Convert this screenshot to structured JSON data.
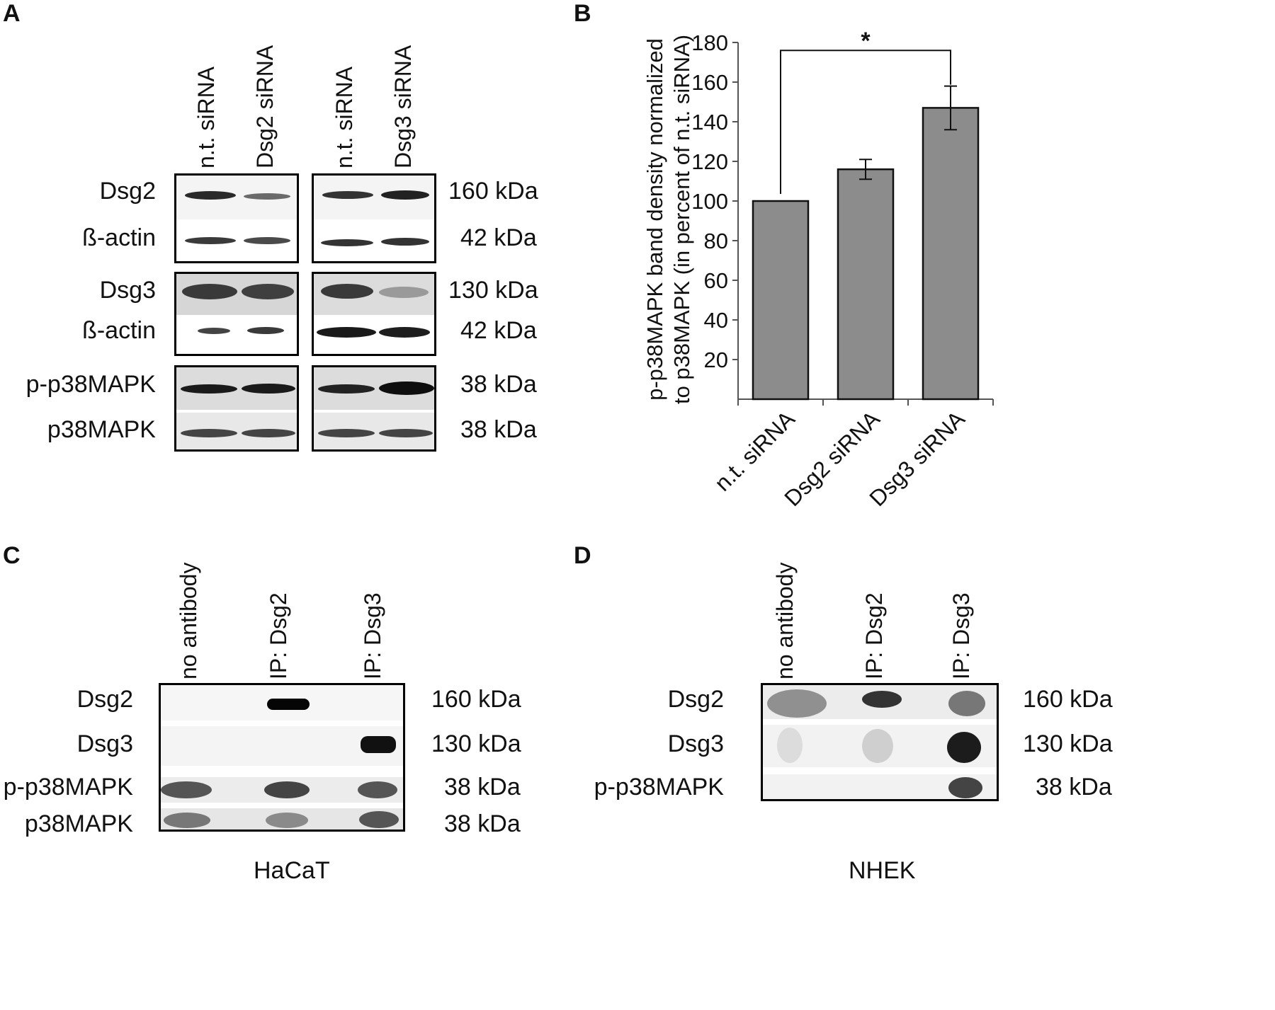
{
  "panels": {
    "a": {
      "letter": "A",
      "lane_labels": [
        "n.t. siRNA",
        "Dsg2 siRNA",
        "n.t. siRNA",
        "Dsg3 siRNA"
      ],
      "rows": [
        {
          "label": "Dsg2",
          "kda": "160 kDa"
        },
        {
          "label": "ß-actin",
          "kda": "42 kDa"
        },
        {
          "label": "Dsg3",
          "kda": "130 kDa"
        },
        {
          "label": "ß-actin",
          "kda": "42 kDa"
        },
        {
          "label": "p-p38MAPK",
          "kda": "38 kDa"
        },
        {
          "label": "p38MAPK",
          "kda": "38 kDa"
        }
      ]
    },
    "b": {
      "letter": "B"
    },
    "c": {
      "letter": "C",
      "lane_labels": [
        "no antibody",
        "IP: Dsg2",
        "IP: Dsg3"
      ],
      "rows": [
        {
          "label": "Dsg2",
          "kda": "160 kDa"
        },
        {
          "label": "Dsg3",
          "kda": "130 kDa"
        },
        {
          "label": "p-p38MAPK",
          "kda": "38 kDa"
        },
        {
          "label": "p38MAPK",
          "kda": "38 kDa"
        }
      ],
      "cell_line": "HaCaT"
    },
    "d": {
      "letter": "D",
      "lane_labels": [
        "no antibody",
        "IP: Dsg2",
        "IP: Dsg3"
      ],
      "rows": [
        {
          "label": "Dsg2",
          "kda": "160 kDa"
        },
        {
          "label": "Dsg3",
          "kda": "130 kDa"
        },
        {
          "label": "p-p38MAPK",
          "kda": "38 kDa"
        }
      ],
      "cell_line": "NHEK"
    }
  },
  "chart_data": {
    "type": "bar",
    "categories": [
      "n.t. siRNA",
      "Dsg2 siRNA",
      "Dsg3 siRNA"
    ],
    "values": [
      100,
      116,
      147
    ],
    "errors": [
      0,
      5,
      11
    ],
    "ylabel": "p-p38MAPK band density normalized to p38MAPK (in percent of n.t. siRNA)",
    "ylabel_lines": [
      "p-p38MAPK band density normalized",
      "to p38MAPK (in percent of n.t. siRNA)"
    ],
    "ylim": [
      0,
      180
    ],
    "yticks": [
      20,
      40,
      60,
      80,
      100,
      120,
      140,
      160,
      180
    ],
    "significance": {
      "between": [
        "n.t. siRNA",
        "Dsg3 siRNA"
      ],
      "label": "*"
    },
    "bar_color": "#8c8c8c",
    "grid": false
  }
}
